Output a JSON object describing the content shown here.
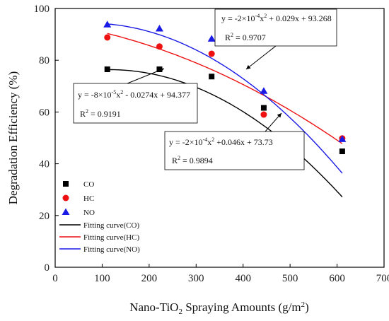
{
  "chart_data": {
    "type": "scatter",
    "xlabel_main": "Nano-TiO",
    "xlabel_sub": "2",
    "xlabel_rest": " Spraying Amounts (g/m",
    "xlabel_sup": "2",
    "xlabel_end": ")",
    "ylabel": "Degradation Efficiency (%)",
    "xlim": [
      0,
      700
    ],
    "ylim": [
      0,
      100
    ],
    "xticks": [
      "0",
      "100",
      "200",
      "300",
      "400",
      "500",
      "600",
      "700"
    ],
    "yticks": [
      "0",
      "20",
      "40",
      "60",
      "80",
      "100"
    ],
    "x": [
      111,
      222,
      333,
      444,
      611
    ],
    "series": [
      {
        "name": "CO",
        "marker": "square",
        "color": "#000000",
        "values": [
          76.5,
          76.5,
          73.7,
          61.6,
          44.8
        ]
      },
      {
        "name": "HC",
        "marker": "circle",
        "color": "#ee1111",
        "values": [
          88.8,
          85.3,
          82.5,
          59.0,
          49.8
        ]
      },
      {
        "name": "NO",
        "marker": "triangle",
        "color": "#1a1ae6",
        "values": [
          93.8,
          92.2,
          88.3,
          68.1,
          49.5
        ]
      }
    ],
    "fits": [
      {
        "name": "Fitting curve(CO)",
        "color": "#000000",
        "a": -0.0002,
        "b": 0.046,
        "c": 73.73
      },
      {
        "name": "Fitting curve(HC)",
        "color": "#ee1111",
        "a": -8e-05,
        "b": -0.0274,
        "c": 94.377
      },
      {
        "name": "Fitting curve(NO)",
        "color": "#1a1ae6",
        "a": -0.0002,
        "b": 0.029,
        "c": 93.268
      }
    ],
    "annotations": [
      {
        "id": "no",
        "eq_pre": "y = -2×10",
        "eq_exp": "-4",
        "eq_mid": "x",
        "eq_exp2": "2",
        "eq_post": " + 0.029x + 93.268",
        "r2_pre": "R",
        "r2_exp": "2",
        "r2_post": " = 0.9707"
      },
      {
        "id": "hc",
        "eq_pre": "y = -8×10",
        "eq_exp": "-5",
        "eq_mid": "x",
        "eq_exp2": "2",
        "eq_post": " - 0.0274x + 94.377",
        "r2_pre": "R",
        "r2_exp": "2",
        "r2_post": " = 0.9191"
      },
      {
        "id": "co",
        "eq_pre": "y = -2×10",
        "eq_exp": "-4",
        "eq_mid": "x",
        "eq_exp2": "2",
        "eq_post": " +0.046x + 73.73",
        "r2_pre": "R",
        "r2_exp": "2",
        "r2_post": " = 0.9894"
      }
    ],
    "grid": false,
    "legend_position": "bottom-left"
  }
}
